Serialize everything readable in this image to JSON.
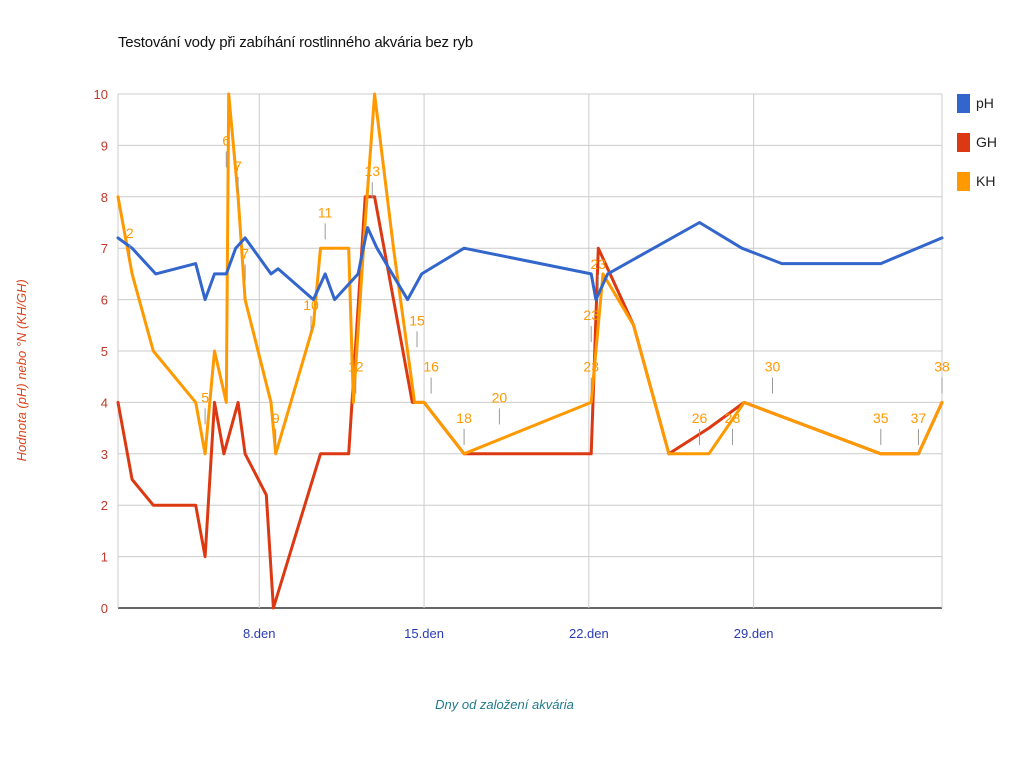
{
  "chart_data": {
    "type": "line",
    "title": "Testování vody při zabíhání rostlinného akvária bez ryb",
    "xlabel": "Dny od založení akvária",
    "ylabel": "Hodnota (pH) nebo °N (KH/GH)",
    "ylim": [
      0,
      10
    ],
    "xlim": [
      1,
      36
    ],
    "y_ticks": [
      0,
      1,
      2,
      3,
      4,
      5,
      6,
      7,
      8,
      9,
      10
    ],
    "x_ticks": [
      {
        "x": 7,
        "label": "8.den"
      },
      {
        "x": 14,
        "label": "15.den"
      },
      {
        "x": 21,
        "label": "22.den"
      },
      {
        "x": 28,
        "label": "29.den"
      }
    ],
    "grid": true,
    "legend_position": "right",
    "series": [
      {
        "name": "pH",
        "color": "#3366cc",
        "points": [
          [
            1,
            7.2
          ],
          [
            1.6,
            7.0
          ],
          [
            2.6,
            6.5
          ],
          [
            4.3,
            6.7
          ],
          [
            4.7,
            6.0
          ],
          [
            5.1,
            6.5
          ],
          [
            5.6,
            6.5
          ],
          [
            6,
            7.0
          ],
          [
            6.4,
            7.2
          ],
          [
            7.5,
            6.5
          ],
          [
            7.8,
            6.6
          ],
          [
            9.3,
            6.0
          ],
          [
            9.8,
            6.5
          ],
          [
            10.2,
            6.0
          ],
          [
            11.2,
            6.5
          ],
          [
            11.6,
            7.4
          ],
          [
            12,
            7.0
          ],
          [
            13.3,
            6.0
          ],
          [
            13.9,
            6.5
          ],
          [
            15.7,
            7.0
          ],
          [
            21.1,
            6.5
          ],
          [
            21.3,
            6.0
          ],
          [
            21.8,
            6.5
          ],
          [
            25.7,
            7.5
          ],
          [
            27.5,
            7.0
          ],
          [
            29.2,
            6.7
          ],
          [
            33.4,
            6.7
          ],
          [
            36,
            7.2
          ]
        ]
      },
      {
        "name": "GH",
        "color": "#dc3912",
        "points": [
          [
            1,
            4
          ],
          [
            1.6,
            2.5
          ],
          [
            2.5,
            2.0
          ],
          [
            4.3,
            2.0
          ],
          [
            4.7,
            1.0
          ],
          [
            5.1,
            4.0
          ],
          [
            5.5,
            3.0
          ],
          [
            6.1,
            4.0
          ],
          [
            6.4,
            3.0
          ],
          [
            7.3,
            2.2
          ],
          [
            7.6,
            0
          ],
          [
            8.6,
            1.5
          ],
          [
            9.6,
            3.0
          ],
          [
            10.8,
            3.0
          ],
          [
            11.5,
            8.0
          ],
          [
            11.9,
            8.0
          ],
          [
            12.7,
            6.0
          ],
          [
            13.5,
            4.0
          ],
          [
            14,
            4.0
          ],
          [
            15.7,
            3.0
          ],
          [
            21.1,
            3.0
          ],
          [
            21.4,
            7.0
          ],
          [
            22.9,
            5.5
          ],
          [
            24.4,
            3.0
          ],
          [
            26.1,
            3.5
          ],
          [
            27.6,
            4.0
          ],
          [
            33.4,
            3.0
          ],
          [
            35,
            3.0
          ],
          [
            36,
            4.0
          ]
        ]
      },
      {
        "name": "KH",
        "color": "#ff9900",
        "points": [
          [
            1,
            8
          ],
          [
            1.6,
            6.5
          ],
          [
            2.5,
            5.0
          ],
          [
            4.3,
            4.0
          ],
          [
            4.7,
            3.0
          ],
          [
            5.1,
            5.0
          ],
          [
            5.6,
            4.0
          ],
          [
            5.7,
            10
          ],
          [
            6.1,
            8.0
          ],
          [
            6.4,
            6.0
          ],
          [
            7.5,
            4.0
          ],
          [
            7.7,
            3.0
          ],
          [
            9.3,
            5.5
          ],
          [
            9.6,
            7.0
          ],
          [
            10.8,
            7.0
          ],
          [
            11,
            4.0
          ],
          [
            11.5,
            7.5
          ],
          [
            11.9,
            10
          ],
          [
            12.7,
            7.0
          ],
          [
            13.6,
            4.0
          ],
          [
            14,
            4.0
          ],
          [
            15.7,
            3.0
          ],
          [
            21.1,
            4.0
          ],
          [
            21.6,
            6.5
          ],
          [
            22.9,
            5.5
          ],
          [
            24.4,
            3.0
          ],
          [
            26.1,
            3.0
          ],
          [
            27.6,
            4.0
          ],
          [
            33.4,
            3.0
          ],
          [
            35,
            3.0
          ],
          [
            36,
            4.0
          ]
        ]
      }
    ],
    "annotations": [
      {
        "series": "KH",
        "x": 1.5,
        "y": 7.2,
        "label": "2"
      },
      {
        "series": "KH",
        "x": 4.7,
        "y": 4.0,
        "label": "5"
      },
      {
        "series": "KH",
        "x": 5.6,
        "y": 9.0,
        "label": "6"
      },
      {
        "series": "KH",
        "x": 6.1,
        "y": 8.5,
        "label": "7"
      },
      {
        "series": "KH",
        "x": 6.4,
        "y": 6.8,
        "label": "7"
      },
      {
        "series": "KH",
        "x": 7.7,
        "y": 3.6,
        "label": "9"
      },
      {
        "series": "KH",
        "x": 9.2,
        "y": 5.8,
        "label": "10"
      },
      {
        "series": "KH",
        "x": 9.8,
        "y": 7.6,
        "label": "11"
      },
      {
        "series": "KH",
        "x": 11.1,
        "y": 4.6,
        "label": "12"
      },
      {
        "series": "KH",
        "x": 11.8,
        "y": 8.4,
        "label": "13"
      },
      {
        "series": "KH",
        "x": 13.7,
        "y": 5.5,
        "label": "15"
      },
      {
        "series": "KH",
        "x": 14.3,
        "y": 4.6,
        "label": "16"
      },
      {
        "series": "KH",
        "x": 15.7,
        "y": 3.6,
        "label": "18"
      },
      {
        "series": "KH",
        "x": 17.2,
        "y": 4.0,
        "label": "20"
      },
      {
        "series": "KH",
        "x": 21.1,
        "y": 5.6,
        "label": "23"
      },
      {
        "series": "KH",
        "x": 21.1,
        "y": 4.6,
        "label": "23"
      },
      {
        "series": "KH",
        "x": 21.4,
        "y": 6.6,
        "label": "23"
      },
      {
        "series": "KH",
        "x": 25.7,
        "y": 3.6,
        "label": "26"
      },
      {
        "series": "KH",
        "x": 27.1,
        "y": 3.6,
        "label": "28"
      },
      {
        "series": "KH",
        "x": 28.8,
        "y": 4.6,
        "label": "30"
      },
      {
        "series": "KH",
        "x": 33.4,
        "y": 3.6,
        "label": "35"
      },
      {
        "series": "KH",
        "x": 35,
        "y": 3.6,
        "label": "37"
      },
      {
        "series": "KH",
        "x": 36,
        "y": 4.6,
        "label": "38"
      }
    ]
  }
}
